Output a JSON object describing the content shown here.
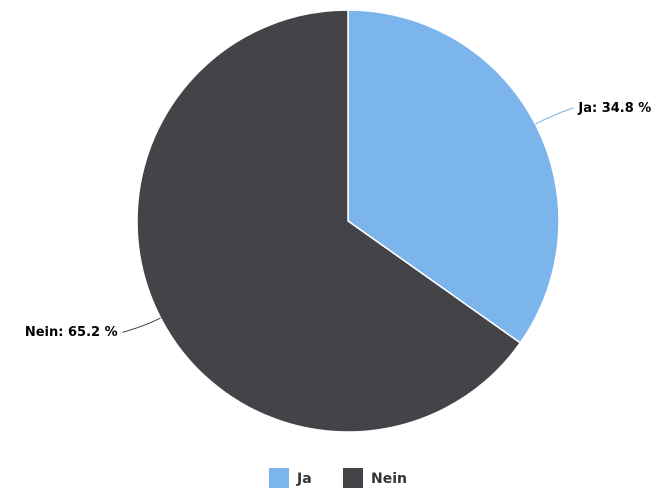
{
  "chart_data": {
    "type": "pie",
    "categories": [
      "Ja",
      "Nein"
    ],
    "values": [
      34.8,
      65.2
    ],
    "unit": "%",
    "colors": [
      "#7cb5ec",
      "#434348"
    ],
    "data_labels": [
      "Ja: 34.8 %",
      "Nein: 65.2 %"
    ],
    "legend": {
      "placement": "bottom-center",
      "items": [
        {
          "label": "Ja",
          "color": "#7cb5ec"
        },
        {
          "label": "Nein",
          "color": "#434348"
        }
      ]
    }
  }
}
